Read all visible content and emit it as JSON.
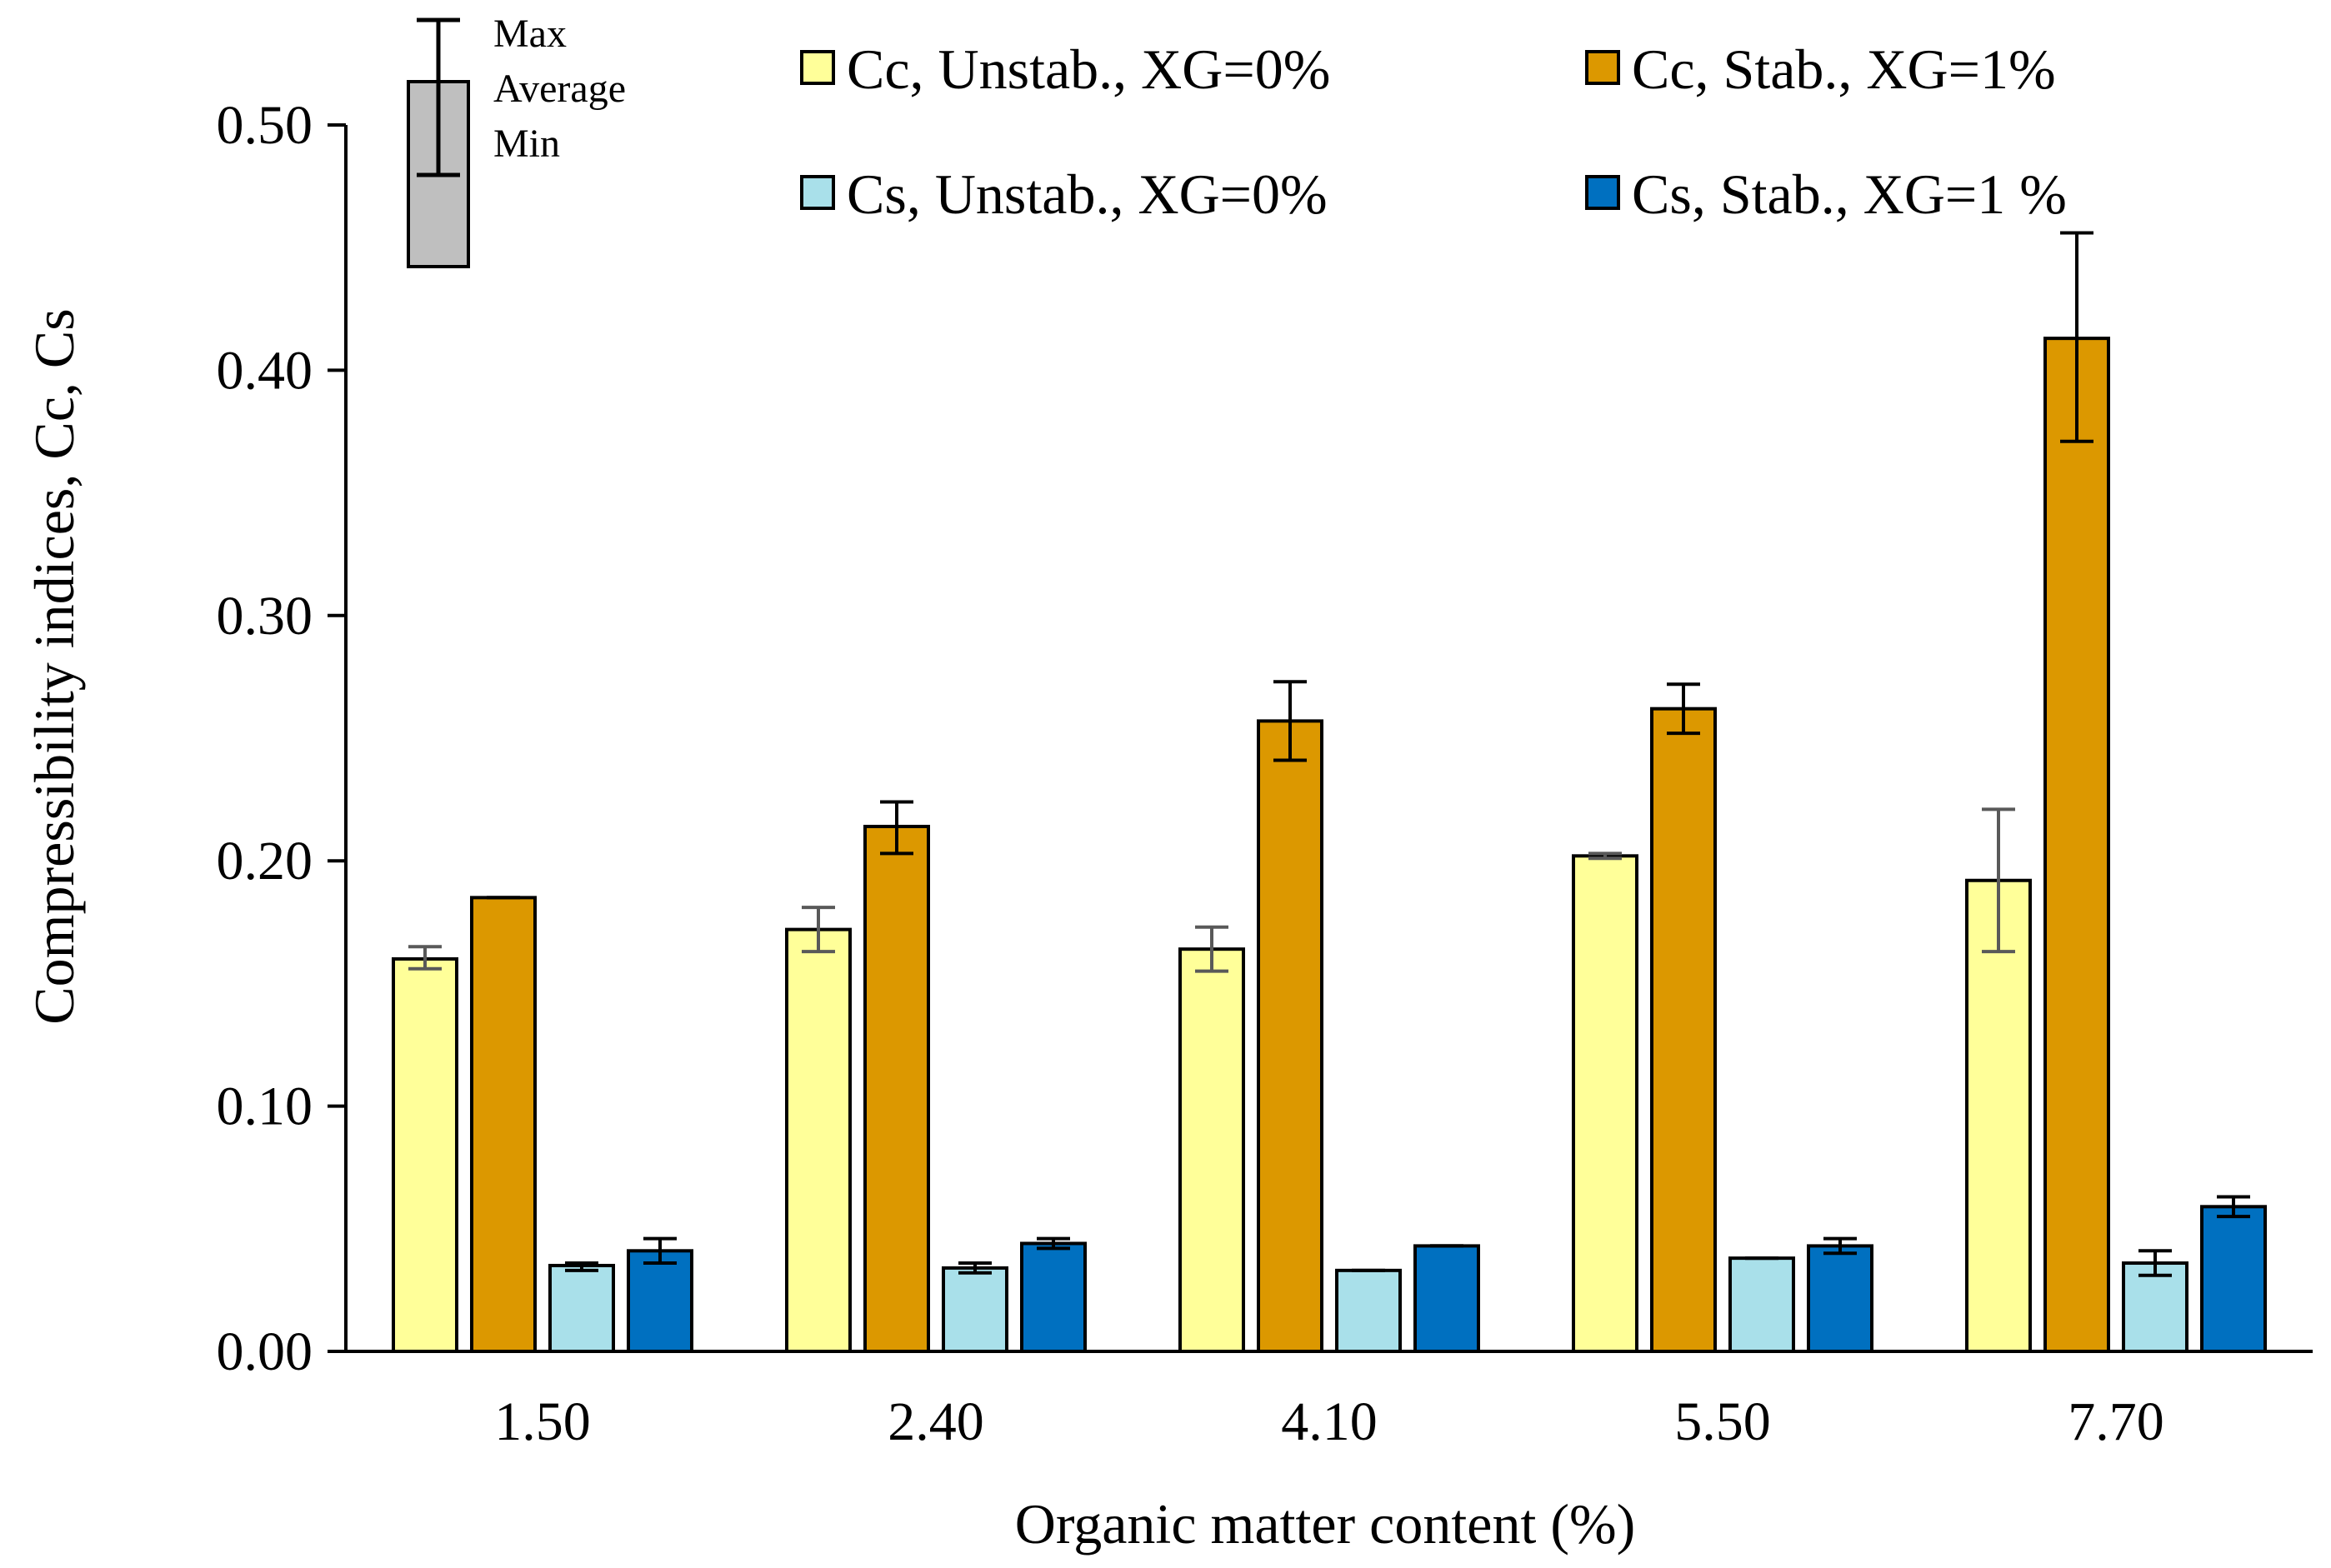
{
  "chart_data": {
    "type": "bar",
    "title": "",
    "xlabel": "Organic matter content (%)",
    "ylabel": "Compressibility indices, Cc, Cs",
    "ylim": [
      0,
      0.5
    ],
    "yticks": [
      "0.00",
      "0.10",
      "0.20",
      "0.30",
      "0.40",
      "0.50"
    ],
    "categories": [
      "1.50",
      "2.40",
      "4.10",
      "5.50",
      "7.70"
    ],
    "series": [
      {
        "name": "Cc, Unstab., XG=0%",
        "color": "#ffff99",
        "errcolor": "#595959",
        "values": [
          0.16,
          0.172,
          0.164,
          0.202,
          0.192
        ],
        "min": [
          0.156,
          0.163,
          0.155,
          0.201,
          0.163
        ],
        "max": [
          0.165,
          0.181,
          0.173,
          0.203,
          0.221
        ]
      },
      {
        "name": "Cc, Stab., XG=1%",
        "color": "#dc9800",
        "errcolor": "#000000",
        "values": [
          0.185,
          0.214,
          0.257,
          0.262,
          0.413
        ],
        "min": [
          0.185,
          0.203,
          0.241,
          0.252,
          0.371
        ],
        "max": [
          0.185,
          0.224,
          0.273,
          0.272,
          0.456
        ]
      },
      {
        "name": "Cs, Unstab., XG=0%",
        "color": "#a9e0ea",
        "errcolor": "#000000",
        "values": [
          0.035,
          0.034,
          0.033,
          0.038,
          0.036
        ],
        "min": [
          0.033,
          0.032,
          0.033,
          0.038,
          0.031
        ],
        "max": [
          0.036,
          0.036,
          0.033,
          0.038,
          0.041
        ]
      },
      {
        "name": "Cs, Stab., XG=1 %",
        "color": "#0070c0",
        "errcolor": "#000000",
        "values": [
          0.041,
          0.044,
          0.043,
          0.043,
          0.059
        ],
        "min": [
          0.036,
          0.042,
          0.043,
          0.04,
          0.055
        ],
        "max": [
          0.046,
          0.046,
          0.043,
          0.046,
          0.063
        ]
      }
    ],
    "errorbar_key": {
      "max_label": "Max",
      "average_label": "Average",
      "min_label": "Min",
      "color": "#bfbfbf"
    }
  }
}
